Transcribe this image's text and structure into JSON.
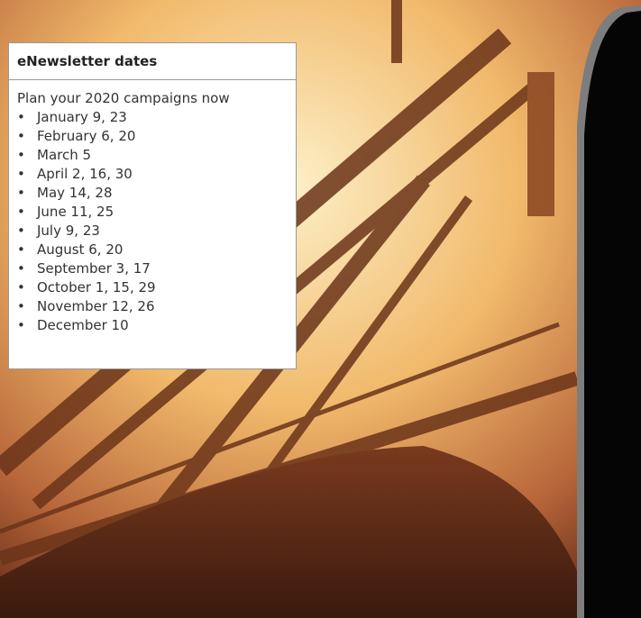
{
  "panel": {
    "title": "eNewsletter dates",
    "subtitle": "Plan your 2020 campaigns now",
    "dates": [
      "January 9, 23",
      "February 6, 20",
      "March 5",
      "April 2, 16, 30",
      "May 14, 28",
      "June 11, 25",
      "July 9, 23",
      "August 6, 20",
      "September 3, 17",
      "October 1, 15, 29",
      "November 12, 26",
      "December 10"
    ]
  }
}
